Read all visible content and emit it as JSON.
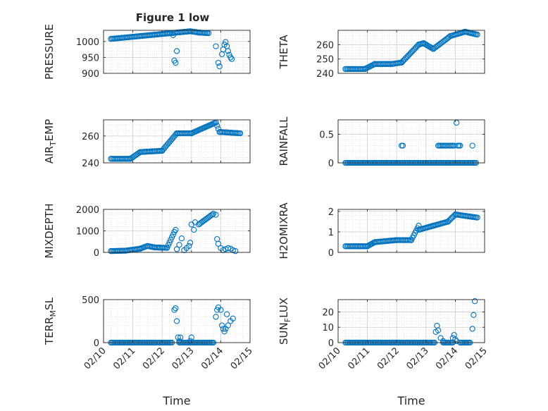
{
  "figure": {
    "title": "Figure 1 low",
    "marker_color": "#0072BD",
    "axis_color": "#262626",
    "grid_color": "#d9d9d9"
  },
  "chart_data": [
    {
      "type": "scatter",
      "marker": "circle-open",
      "ylabel": "PRESSURE",
      "xlabel": "",
      "ylim": [
        900,
        1035
      ],
      "yticks": [
        900,
        950,
        1000
      ],
      "ytick_labels": [
        "900",
        "950",
        "1000"
      ],
      "xlim": [
        "02/10",
        "02/15"
      ],
      "xticks": [
        "02/10",
        "02/11",
        "02/12",
        "02/13",
        "02/14",
        "02/15"
      ],
      "show_xtick_labels": false,
      "grid": "major+minor",
      "segments": [
        {
          "x": [
            "02/10 06:00",
            "02/12 23:00"
          ],
          "y": [
            1008,
            1032
          ]
        },
        {
          "x": [
            "02/12 23:00",
            "02/13 06:00"
          ],
          "y": [
            1032,
            1028
          ]
        },
        {
          "x": [
            "02/13 06:00",
            "02/13 14:00"
          ],
          "y": [
            1028,
            1026
          ]
        }
      ],
      "points": [
        {
          "x": "02/12 09:00",
          "y": 1020
        },
        {
          "x": "02/12 10:00",
          "y": 940
        },
        {
          "x": "02/12 11:00",
          "y": 933
        },
        {
          "x": "02/12 12:00",
          "y": 970
        },
        {
          "x": "02/13 20:00",
          "y": 985
        },
        {
          "x": "02/13 22:00",
          "y": 933
        },
        {
          "x": "02/13 23:00",
          "y": 922
        },
        {
          "x": "02/14 01:00",
          "y": 960
        },
        {
          "x": "02/14 02:00",
          "y": 975
        },
        {
          "x": "02/14 03:00",
          "y": 990
        },
        {
          "x": "02/14 04:00",
          "y": 998
        },
        {
          "x": "02/14 05:00",
          "y": 985
        },
        {
          "x": "02/14 06:00",
          "y": 970
        },
        {
          "x": "02/14 07:00",
          "y": 958
        },
        {
          "x": "02/14 08:00",
          "y": 950
        },
        {
          "x": "02/14 09:00",
          "y": 945
        }
      ]
    },
    {
      "type": "scatter",
      "marker": "circle-open",
      "ylabel": "THETA",
      "xlabel": "",
      "ylim": [
        240,
        270
      ],
      "yticks": [
        240,
        250,
        260
      ],
      "ytick_labels": [
        "240",
        "250",
        "260"
      ],
      "xlim": [
        "02/10",
        "02/15"
      ],
      "xticks": [
        "02/10",
        "02/11",
        "02/12",
        "02/13",
        "02/14",
        "02/15"
      ],
      "show_xtick_labels": false,
      "grid": "major+minor",
      "segments": [
        {
          "x": [
            "02/10 06:00",
            "02/10 22:00"
          ],
          "y": [
            243,
            243
          ]
        },
        {
          "x": [
            "02/10 22:00",
            "02/11 06:00"
          ],
          "y": [
            243,
            246.5
          ]
        },
        {
          "x": [
            "02/11 06:00",
            "02/11 20:00"
          ],
          "y": [
            246.5,
            246.5
          ]
        },
        {
          "x": [
            "02/11 20:00",
            "02/12 04:00"
          ],
          "y": [
            246.5,
            247.5
          ]
        },
        {
          "x": [
            "02/12 04:00",
            "02/12 18:00"
          ],
          "y": [
            247.5,
            260
          ]
        },
        {
          "x": [
            "02/12 18:00",
            "02/12 22:00"
          ],
          "y": [
            260,
            261
          ]
        },
        {
          "x": [
            "02/12 22:00",
            "02/13 06:00"
          ],
          "y": [
            261,
            257
          ]
        },
        {
          "x": [
            "02/13 06:00",
            "02/13 20:00"
          ],
          "y": [
            257,
            266
          ]
        },
        {
          "x": [
            "02/13 20:00",
            "02/14 08:00"
          ],
          "y": [
            266,
            269
          ]
        },
        {
          "x": [
            "02/14 08:00",
            "02/14 18:00"
          ],
          "y": [
            269,
            267
          ]
        }
      ],
      "points": []
    },
    {
      "type": "scatter",
      "marker": "circle-open",
      "ylabel": "AIR_TEMP",
      "xlabel": "",
      "ylim": [
        240,
        272
      ],
      "yticks": [
        240,
        260
      ],
      "ytick_labels": [
        "240",
        "260"
      ],
      "xlim": [
        "02/10",
        "02/15"
      ],
      "xticks": [
        "02/10",
        "02/11",
        "02/12",
        "02/13",
        "02/14",
        "02/15"
      ],
      "show_xtick_labels": false,
      "grid": "major+minor",
      "segments": [
        {
          "x": [
            "02/10 06:00",
            "02/10 22:00"
          ],
          "y": [
            243,
            243
          ]
        },
        {
          "x": [
            "02/10 22:00",
            "02/11 06:00"
          ],
          "y": [
            243,
            248
          ]
        },
        {
          "x": [
            "02/11 06:00",
            "02/12 00:00"
          ],
          "y": [
            248,
            249
          ]
        },
        {
          "x": [
            "02/12 00:00",
            "02/12 12:00"
          ],
          "y": [
            249,
            262
          ]
        },
        {
          "x": [
            "02/12 12:00",
            "02/13 00:00"
          ],
          "y": [
            262,
            262
          ]
        },
        {
          "x": [
            "02/13 00:00",
            "02/13 20:00"
          ],
          "y": [
            262,
            270
          ]
        },
        {
          "x": [
            "02/13 20:00",
            "02/13 23:00"
          ],
          "y": [
            270,
            263
          ]
        },
        {
          "x": [
            "02/13 23:00",
            "02/14 16:00"
          ],
          "y": [
            263,
            262
          ]
        }
      ],
      "points": []
    },
    {
      "type": "scatter",
      "marker": "circle-open",
      "ylabel": "RAINFALL",
      "xlabel": "",
      "ylim": [
        0,
        0.75
      ],
      "yticks": [
        0,
        0.5
      ],
      "ytick_labels": [
        "0",
        "0.5"
      ],
      "xlim": [
        "02/10",
        "02/15"
      ],
      "xticks": [
        "02/10",
        "02/11",
        "02/12",
        "02/13",
        "02/14",
        "02/15"
      ],
      "show_xtick_labels": false,
      "grid": "major+minor",
      "segments": [
        {
          "x": [
            "02/10 06:00",
            "02/12 05:00"
          ],
          "y": [
            0,
            0
          ]
        },
        {
          "x": [
            "02/12 06:00",
            "02/13 08:00"
          ],
          "y": [
            0,
            0
          ]
        },
        {
          "x": [
            "02/13 09:00",
            "02/14 17:00"
          ],
          "y": [
            0,
            0
          ]
        }
      ],
      "points": [
        {
          "x": "02/12 04:00",
          "y": 0.3
        },
        {
          "x": "02/12 05:00",
          "y": 0.3
        },
        {
          "x": "02/13 10:00",
          "y": 0.3
        },
        {
          "x": "02/13 11:00",
          "y": 0.3
        },
        {
          "x": "02/13 12:00",
          "y": 0.3
        },
        {
          "x": "02/13 13:00",
          "y": 0.3
        },
        {
          "x": "02/13 14:00",
          "y": 0.3
        },
        {
          "x": "02/13 15:00",
          "y": 0.3
        },
        {
          "x": "02/13 16:00",
          "y": 0.3
        },
        {
          "x": "02/13 17:00",
          "y": 0.3
        },
        {
          "x": "02/13 19:00",
          "y": 0.3
        },
        {
          "x": "02/13 20:00",
          "y": 0.3
        },
        {
          "x": "02/13 21:00",
          "y": 0.3
        },
        {
          "x": "02/13 22:00",
          "y": 0.3
        },
        {
          "x": "02/13 23:00",
          "y": 0.3
        },
        {
          "x": "02/14 01:00",
          "y": 0.7
        },
        {
          "x": "02/14 02:00",
          "y": 0.3
        },
        {
          "x": "02/14 03:00",
          "y": 0.3
        },
        {
          "x": "02/14 04:00",
          "y": 0.3
        },
        {
          "x": "02/14 14:00",
          "y": 0.3
        }
      ]
    },
    {
      "type": "scatter",
      "marker": "circle-open",
      "ylabel": "MIXDEPTH",
      "xlabel": "",
      "ylim": [
        0,
        2000
      ],
      "yticks": [
        0,
        1000,
        2000
      ],
      "ytick_labels": [
        "0",
        "1000",
        "2000"
      ],
      "xlim": [
        "02/10",
        "02/15"
      ],
      "xticks": [
        "02/10",
        "02/11",
        "02/12",
        "02/13",
        "02/14",
        "02/15"
      ],
      "show_xtick_labels": false,
      "grid": "major+minor",
      "segments": [
        {
          "x": [
            "02/10 06:00",
            "02/10 18:00"
          ],
          "y": [
            60,
            80
          ]
        },
        {
          "x": [
            "02/10 18:00",
            "02/11 06:00"
          ],
          "y": [
            80,
            170
          ]
        },
        {
          "x": [
            "02/11 06:00",
            "02/11 12:00"
          ],
          "y": [
            170,
            300
          ]
        },
        {
          "x": [
            "02/11 12:00",
            "02/11 18:00"
          ],
          "y": [
            300,
            230
          ]
        },
        {
          "x": [
            "02/11 18:00",
            "02/12 04:00"
          ],
          "y": [
            230,
            210
          ]
        },
        {
          "x": [
            "02/12 04:00",
            "02/12 10:00"
          ],
          "y": [
            210,
            950
          ]
        },
        {
          "x": [
            "02/13 06:00",
            "02/13 18:00"
          ],
          "y": [
            1300,
            1800
          ]
        }
      ],
      "points": [
        {
          "x": "02/12 11:00",
          "y": 1050
        },
        {
          "x": "02/12 12:00",
          "y": 150
        },
        {
          "x": "02/12 14:00",
          "y": 350
        },
        {
          "x": "02/12 16:00",
          "y": 650
        },
        {
          "x": "02/12 18:00",
          "y": 100
        },
        {
          "x": "02/12 20:00",
          "y": 200
        },
        {
          "x": "02/12 22:00",
          "y": 300
        },
        {
          "x": "02/12 23:00",
          "y": 450
        },
        {
          "x": "02/13 00:00",
          "y": 1300
        },
        {
          "x": "02/13 02:00",
          "y": 1050
        },
        {
          "x": "02/13 03:00",
          "y": 1400
        },
        {
          "x": "02/13 20:00",
          "y": 1750
        },
        {
          "x": "02/13 21:00",
          "y": 620
        },
        {
          "x": "02/13 22:00",
          "y": 400
        },
        {
          "x": "02/14 00:00",
          "y": 200
        },
        {
          "x": "02/14 02:00",
          "y": 100
        },
        {
          "x": "02/14 04:00",
          "y": 150
        },
        {
          "x": "02/14 06:00",
          "y": 200
        },
        {
          "x": "02/14 08:00",
          "y": 170
        },
        {
          "x": "02/14 10:00",
          "y": 100
        },
        {
          "x": "02/14 12:00",
          "y": 60
        }
      ]
    },
    {
      "type": "scatter",
      "marker": "circle-open",
      "ylabel": "H2OMIXRA",
      "xlabel": "",
      "ylim": [
        0,
        2.1
      ],
      "yticks": [
        0,
        1,
        2
      ],
      "ytick_labels": [
        "0",
        "1",
        "2"
      ],
      "xlim": [
        "02/10",
        "02/15"
      ],
      "xticks": [
        "02/10",
        "02/11",
        "02/12",
        "02/13",
        "02/14",
        "02/15"
      ],
      "show_xtick_labels": false,
      "grid": "major+minor",
      "segments": [
        {
          "x": [
            "02/10 06:00",
            "02/11 00:00"
          ],
          "y": [
            0.3,
            0.3
          ]
        },
        {
          "x": [
            "02/11 00:00",
            "02/11 06:00"
          ],
          "y": [
            0.3,
            0.5
          ]
        },
        {
          "x": [
            "02/11 06:00",
            "02/12 00:00"
          ],
          "y": [
            0.5,
            0.6
          ]
        },
        {
          "x": [
            "02/12 00:00",
            "02/12 12:00"
          ],
          "y": [
            0.6,
            0.6
          ]
        },
        {
          "x": [
            "02/12 12:00",
            "02/12 18:00"
          ],
          "y": [
            0.6,
            1.3
          ]
        },
        {
          "x": [
            "02/12 18:00",
            "02/13 06:00"
          ],
          "y": [
            1.1,
            1.3
          ]
        },
        {
          "x": [
            "02/13 06:00",
            "02/13 18:00"
          ],
          "y": [
            1.3,
            1.5
          ]
        },
        {
          "x": [
            "02/13 18:00",
            "02/14 00:00"
          ],
          "y": [
            1.5,
            1.85
          ]
        },
        {
          "x": [
            "02/14 00:00",
            "02/14 18:00"
          ],
          "y": [
            1.85,
            1.7
          ]
        }
      ],
      "points": []
    },
    {
      "type": "scatter",
      "marker": "circle-open",
      "ylabel": "TERR_MSL",
      "xlabel": "Time",
      "ylim": [
        0,
        500
      ],
      "yticks": [
        0,
        500
      ],
      "ytick_labels": [
        "0",
        "500"
      ],
      "xlim": [
        "02/10",
        "02/15"
      ],
      "xticks": [
        "02/10",
        "02/11",
        "02/12",
        "02/13",
        "02/14",
        "02/15"
      ],
      "show_xtick_labels": true,
      "grid": "major+minor",
      "segments": [
        {
          "x": [
            "02/10 06:00",
            "02/12 08:00"
          ],
          "y": [
            0,
            0
          ]
        },
        {
          "x": [
            "02/12 14:00",
            "02/13 18:00"
          ],
          "y": [
            0,
            0
          ]
        }
      ],
      "points": [
        {
          "x": "02/12 10:00",
          "y": 380
        },
        {
          "x": "02/12 11:00",
          "y": 400
        },
        {
          "x": "02/12 12:00",
          "y": 250
        },
        {
          "x": "02/12 13:00",
          "y": 60
        },
        {
          "x": "02/12 14:00",
          "y": 20
        },
        {
          "x": "02/12 15:00",
          "y": 60
        },
        {
          "x": "02/12 23:00",
          "y": 20
        },
        {
          "x": "02/13 00:00",
          "y": 60
        },
        {
          "x": "02/13 20:00",
          "y": 300
        },
        {
          "x": "02/13 21:00",
          "y": 380
        },
        {
          "x": "02/13 22:00",
          "y": 410
        },
        {
          "x": "02/14 00:00",
          "y": 380
        },
        {
          "x": "02/14 01:00",
          "y": 200
        },
        {
          "x": "02/14 02:00",
          "y": 160
        },
        {
          "x": "02/14 03:00",
          "y": 130
        },
        {
          "x": "02/14 04:00",
          "y": 160
        },
        {
          "x": "02/14 05:00",
          "y": 330
        },
        {
          "x": "02/14 06:00",
          "y": 200
        },
        {
          "x": "02/14 08:00",
          "y": 250
        },
        {
          "x": "02/14 10:00",
          "y": 280
        }
      ]
    },
    {
      "type": "scatter",
      "marker": "circle-open",
      "ylabel": "SUN_FLUX",
      "xlabel": "Time",
      "ylim": [
        0,
        28
      ],
      "yticks": [
        0,
        10,
        20
      ],
      "ytick_labels": [
        "0",
        "10",
        "20"
      ],
      "xlim": [
        "02/10",
        "02/15"
      ],
      "xticks": [
        "02/10",
        "02/11",
        "02/12",
        "02/13",
        "02/14",
        "02/15"
      ],
      "show_xtick_labels": true,
      "grid": "major+minor",
      "segments": [
        {
          "x": [
            "02/10 06:00",
            "02/13 07:00"
          ],
          "y": [
            0,
            0
          ]
        },
        {
          "x": [
            "02/13 14:00",
            "02/13 22:00"
          ],
          "y": [
            0,
            0
          ]
        },
        {
          "x": [
            "02/14 04:00",
            "02/14 12:00"
          ],
          "y": [
            0,
            0
          ]
        }
      ],
      "points": [
        {
          "x": "02/13 08:00",
          "y": 7
        },
        {
          "x": "02/13 09:00",
          "y": 11
        },
        {
          "x": "02/13 10:00",
          "y": 8
        },
        {
          "x": "02/13 12:00",
          "y": 3
        },
        {
          "x": "02/13 14:00",
          "y": 1
        },
        {
          "x": "02/13 22:00",
          "y": 3
        },
        {
          "x": "02/13 23:00",
          "y": 5
        },
        {
          "x": "02/14 00:00",
          "y": 2
        },
        {
          "x": "02/14 01:00",
          "y": 1
        },
        {
          "x": "02/14 14:00",
          "y": 9
        },
        {
          "x": "02/14 15:00",
          "y": 18
        },
        {
          "x": "02/14 16:00",
          "y": 27
        }
      ]
    }
  ]
}
